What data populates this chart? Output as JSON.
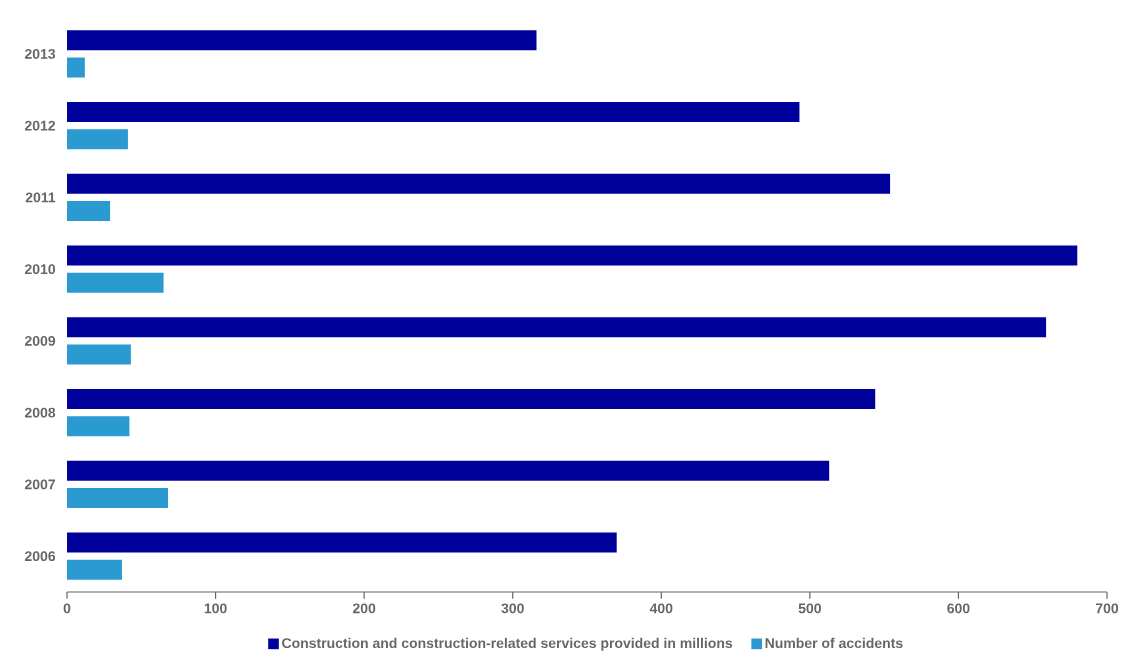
{
  "chart_data": {
    "type": "bar",
    "orientation": "horizontal",
    "categories": [
      "2013",
      "2012",
      "2011",
      "2010",
      "2009",
      "2008",
      "2007",
      "2006"
    ],
    "series": [
      {
        "name": "Construction and construction-related services provided in millions",
        "color": "#00009a",
        "values": [
          316,
          493,
          554,
          680,
          659,
          544,
          513,
          370
        ]
      },
      {
        "name": "Number of accidents",
        "color": "#2b9ad1",
        "values": [
          12,
          41,
          29,
          65,
          43,
          42,
          68,
          37
        ]
      }
    ],
    "xlim": [
      0,
      700
    ],
    "xticks": [
      0,
      100,
      200,
      300,
      400,
      500,
      600,
      700
    ],
    "legend": "bottom"
  }
}
